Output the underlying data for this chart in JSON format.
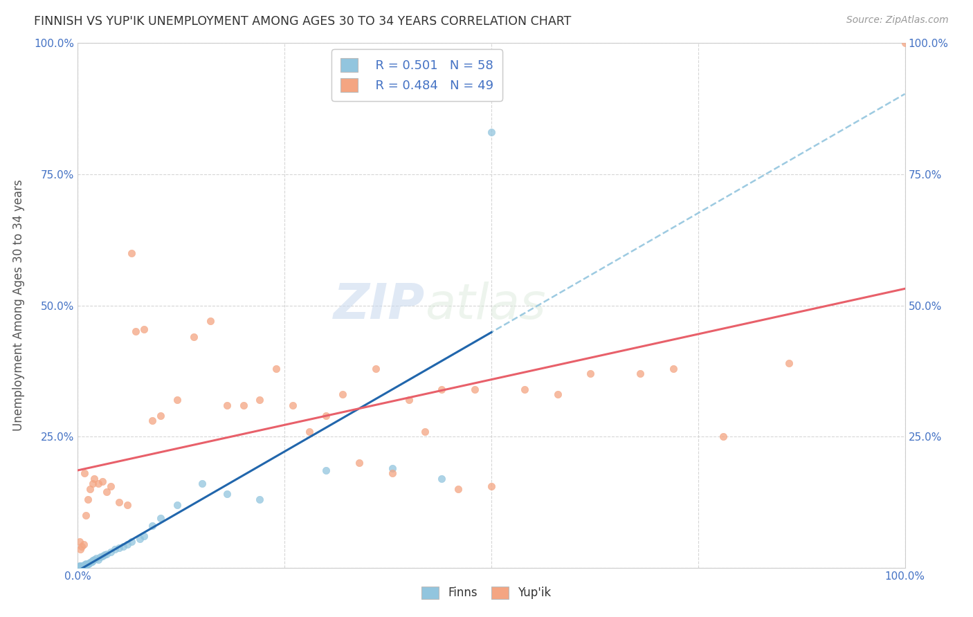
{
  "title": "FINNISH VS YUP'IK UNEMPLOYMENT AMONG AGES 30 TO 34 YEARS CORRELATION CHART",
  "source": "Source: ZipAtlas.com",
  "ylabel": "Unemployment Among Ages 30 to 34 years",
  "legend_finns_r": "0.501",
  "legend_finns_n": "58",
  "legend_yupik_r": "0.484",
  "legend_yupik_n": "49",
  "legend_label_finns": "Finns",
  "legend_label_yupik": "Yup'ik",
  "finns_color": "#92c5de",
  "yupik_color": "#f4a582",
  "finns_line_color": "#2166ac",
  "yupik_line_color": "#e8606a",
  "dashed_line_color": "#92c5de",
  "watermark_color": "#dce8f5",
  "background_color": "#ffffff",
  "grid_color": "#cccccc",
  "title_color": "#333333",
  "axis_label_color": "#4472c4",
  "legend_r_n_color": "#4472c4",
  "finns_scatter_x": [
    0.001,
    0.001,
    0.002,
    0.002,
    0.002,
    0.003,
    0.003,
    0.003,
    0.003,
    0.004,
    0.004,
    0.004,
    0.005,
    0.005,
    0.005,
    0.006,
    0.006,
    0.007,
    0.007,
    0.008,
    0.008,
    0.009,
    0.009,
    0.01,
    0.01,
    0.011,
    0.012,
    0.013,
    0.014,
    0.015,
    0.016,
    0.017,
    0.018,
    0.02,
    0.022,
    0.025,
    0.027,
    0.03,
    0.032,
    0.035,
    0.04,
    0.045,
    0.05,
    0.055,
    0.06,
    0.065,
    0.075,
    0.08,
    0.09,
    0.1,
    0.12,
    0.15,
    0.18,
    0.22,
    0.3,
    0.38,
    0.44,
    0.5
  ],
  "finns_scatter_y": [
    0.0,
    0.002,
    0.0,
    0.001,
    0.003,
    0.0,
    0.001,
    0.002,
    0.003,
    0.001,
    0.002,
    0.003,
    0.001,
    0.002,
    0.004,
    0.002,
    0.003,
    0.003,
    0.005,
    0.003,
    0.005,
    0.004,
    0.006,
    0.005,
    0.007,
    0.006,
    0.007,
    0.008,
    0.009,
    0.01,
    0.011,
    0.012,
    0.014,
    0.016,
    0.018,
    0.015,
    0.02,
    0.022,
    0.024,
    0.026,
    0.03,
    0.035,
    0.038,
    0.04,
    0.045,
    0.05,
    0.055,
    0.06,
    0.08,
    0.095,
    0.12,
    0.16,
    0.14,
    0.13,
    0.185,
    0.19,
    0.17,
    0.83
  ],
  "yupik_scatter_x": [
    0.002,
    0.003,
    0.005,
    0.007,
    0.008,
    0.01,
    0.012,
    0.015,
    0.018,
    0.02,
    0.025,
    0.03,
    0.035,
    0.04,
    0.05,
    0.06,
    0.065,
    0.07,
    0.08,
    0.09,
    0.1,
    0.12,
    0.14,
    0.16,
    0.18,
    0.2,
    0.22,
    0.24,
    0.26,
    0.28,
    0.3,
    0.32,
    0.34,
    0.36,
    0.38,
    0.4,
    0.42,
    0.44,
    0.46,
    0.48,
    0.5,
    0.54,
    0.58,
    0.62,
    0.68,
    0.72,
    0.78,
    0.86,
    1.0
  ],
  "yupik_scatter_y": [
    0.05,
    0.035,
    0.04,
    0.045,
    0.18,
    0.1,
    0.13,
    0.15,
    0.16,
    0.17,
    0.16,
    0.165,
    0.145,
    0.155,
    0.125,
    0.12,
    0.6,
    0.45,
    0.455,
    0.28,
    0.29,
    0.32,
    0.44,
    0.47,
    0.31,
    0.31,
    0.32,
    0.38,
    0.31,
    0.26,
    0.29,
    0.33,
    0.2,
    0.38,
    0.18,
    0.32,
    0.26,
    0.34,
    0.15,
    0.34,
    0.155,
    0.34,
    0.33,
    0.37,
    0.37,
    0.38,
    0.25,
    0.39,
    1.0
  ],
  "xlim": [
    0.0,
    1.0
  ],
  "ylim": [
    0.0,
    1.0
  ],
  "xticks": [
    0.0,
    0.25,
    0.5,
    0.75,
    1.0
  ],
  "yticks": [
    0.0,
    0.25,
    0.5,
    0.75,
    1.0
  ]
}
